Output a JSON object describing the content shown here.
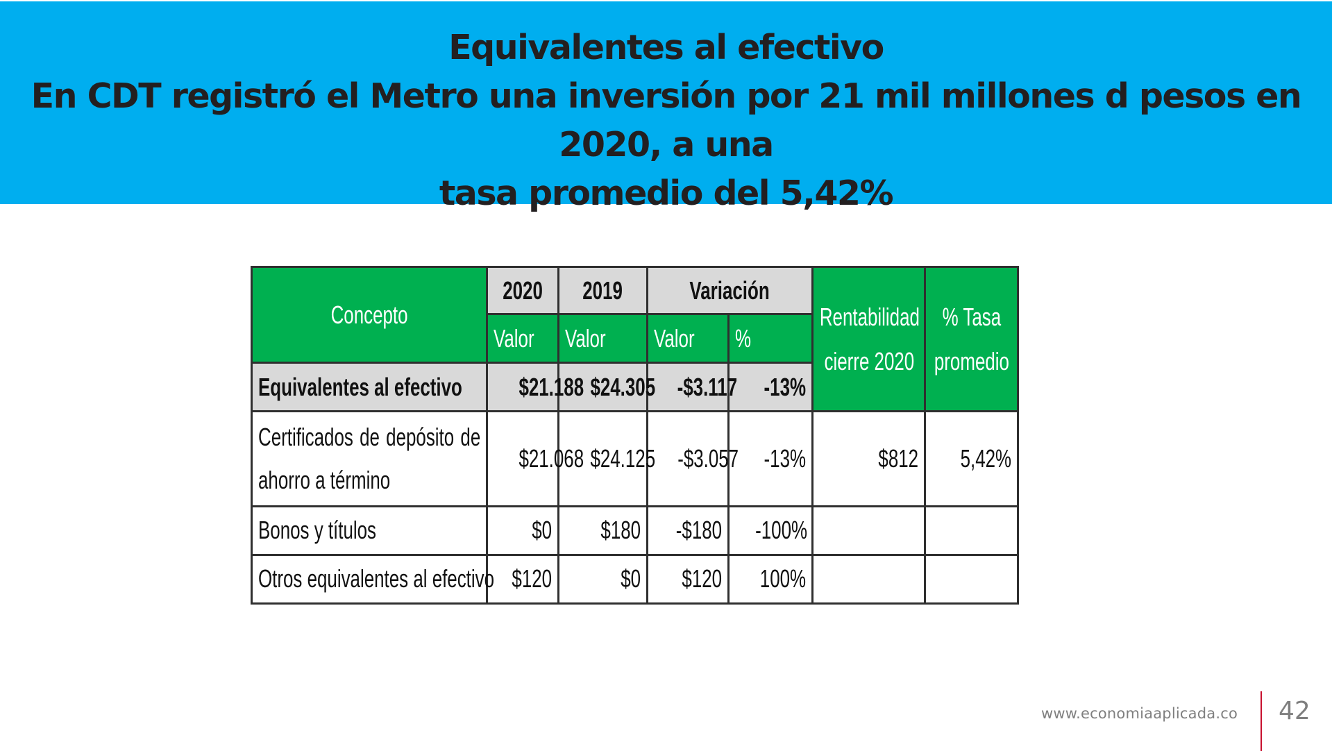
{
  "header": {
    "title_line1": "Equivalentes al efectivo",
    "title_line2": "En CDT registró el Metro una inversión por 21 mil millones d pesos en 2020, a una",
    "title_line3": "tasa promedio del 5,42%",
    "background_color": "#00aeef"
  },
  "table": {
    "header_color": "#00b050",
    "highlight_color": "#d9d9d9",
    "headers": {
      "concepto": "Concepto",
      "year_2020": "2020",
      "year_2019": "2019",
      "variacion": "Variación",
      "valor_2020": "Valor",
      "valor_2019": "Valor",
      "valor_var": "Valor",
      "pct_var": "%",
      "rentabilidad": "Rentabilidad cierre 2020",
      "tasa": "% Tasa promedio"
    },
    "total_row": {
      "concepto": "Equivalentes al efectivo",
      "v2020": "$21.188",
      "v2019": "$24.305",
      "var_valor": "-$3.117",
      "var_pct": "-13%"
    },
    "rows": [
      {
        "concepto": "Certificados de depósito de ahorro a término",
        "v2020": "$21.068",
        "v2019": "$24.125",
        "var_valor": "-$3.057",
        "var_pct": "-13%",
        "rentabilidad": "$812",
        "tasa": "5,42%"
      },
      {
        "concepto": "Bonos y títulos",
        "v2020": "$0",
        "v2019": "$180",
        "var_valor": "-$180",
        "var_pct": "-100%",
        "rentabilidad": "",
        "tasa": ""
      },
      {
        "concepto": "Otros equivalentes al efectivo",
        "v2020": "$120",
        "v2019": "$0",
        "var_valor": "$120",
        "var_pct": "100%",
        "rentabilidad": "",
        "tasa": ""
      }
    ]
  },
  "footer": {
    "url": "www.economiaaplicada.co",
    "page_number": "42",
    "divider_color": "#c8102e"
  }
}
